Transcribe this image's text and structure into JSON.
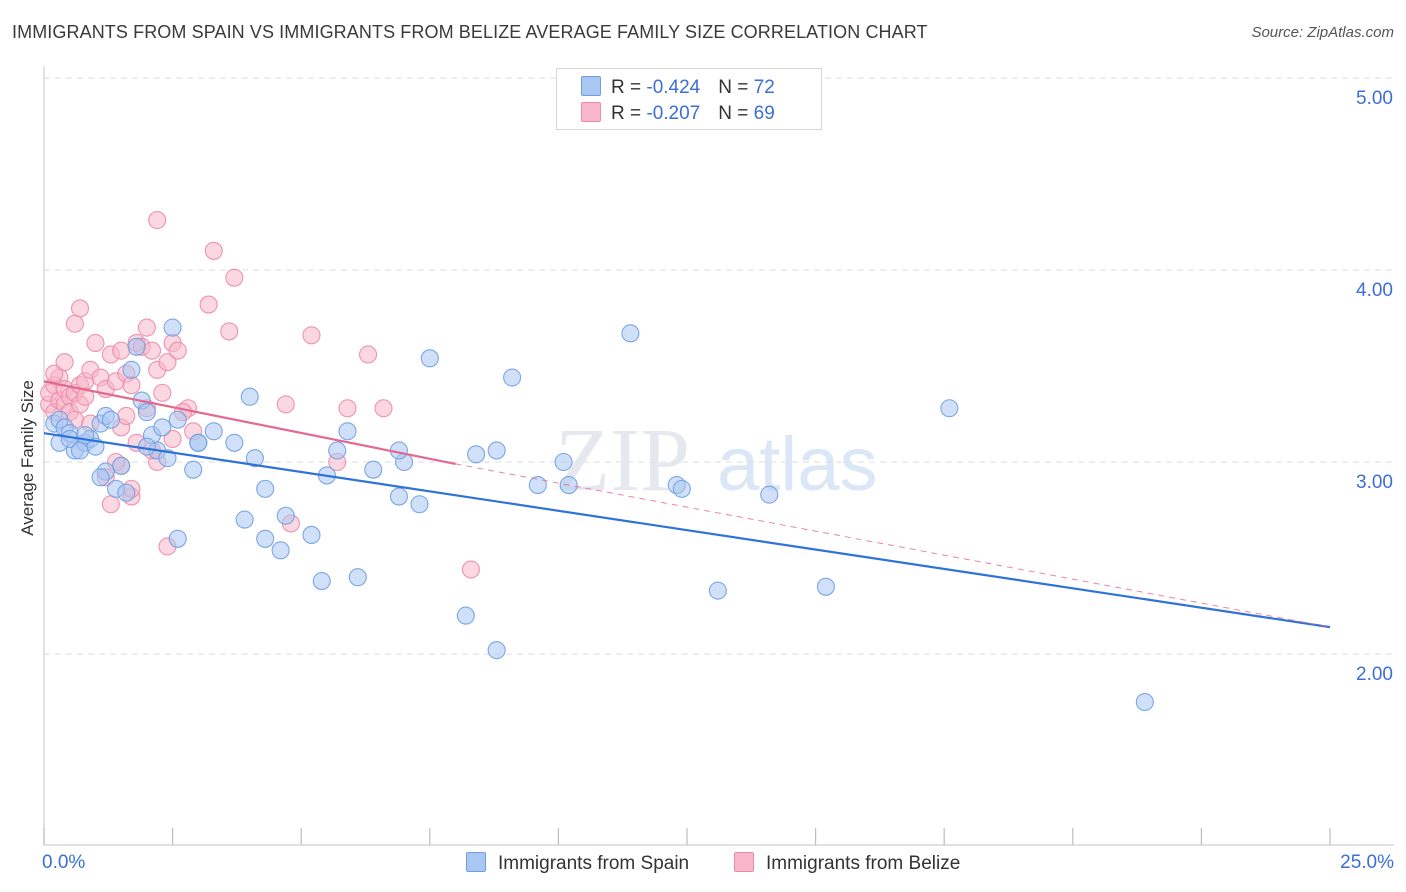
{
  "title": "IMMIGRANTS FROM SPAIN VS IMMIGRANTS FROM BELIZE AVERAGE FAMILY SIZE CORRELATION CHART",
  "source": "Source: ZipAtlas.com",
  "watermark": {
    "zip": "ZIP",
    "atlas": "atlas"
  },
  "colors": {
    "spain_fill": "#a9c7f2",
    "spain_stroke": "#6f9fe0",
    "spain_line": "#2f72d8",
    "belize_fill": "#f7b6c9",
    "belize_stroke": "#ec8aa8",
    "belize_line": "#e3698f",
    "axis_label": "#3b6fd6"
  },
  "legend": {
    "spain": {
      "r_label": "R = ",
      "r_value": "-0.424",
      "n_label": "N = ",
      "n_value": "72"
    },
    "belize": {
      "r_label": "R = ",
      "r_value": "-0.207",
      "n_label": "N = ",
      "n_value": "69"
    }
  },
  "bottom_legend": {
    "spain": "Immigrants from Spain",
    "belize": "Immigrants from Belize"
  },
  "chart_data": {
    "type": "scatter",
    "title": "IMMIGRANTS FROM SPAIN VS IMMIGRANTS FROM BELIZE AVERAGE FAMILY SIZE CORRELATION CHART",
    "xlabel": "",
    "ylabel": "Average Family Size",
    "xlim": [
      0,
      25
    ],
    "ylim": [
      1.0,
      5.15
    ],
    "x_tick_labels": [
      "0.0%",
      "25.0%"
    ],
    "y_ticks": [
      2.0,
      3.0,
      4.0,
      5.0
    ],
    "y_tick_labels": [
      "2.00",
      "3.00",
      "4.00",
      "5.00"
    ],
    "grid": true,
    "series": [
      {
        "name": "Immigrants from Spain",
        "trend": {
          "x": [
            0,
            25
          ],
          "y": [
            3.15,
            2.14
          ],
          "dashed_to": null
        },
        "points": [
          [
            0.2,
            3.2
          ],
          [
            0.3,
            3.22
          ],
          [
            0.4,
            3.18
          ],
          [
            0.3,
            3.1
          ],
          [
            0.5,
            3.15
          ],
          [
            0.6,
            3.06
          ],
          [
            0.5,
            3.12
          ],
          [
            0.8,
            3.1
          ],
          [
            0.7,
            3.06
          ],
          [
            0.9,
            3.12
          ],
          [
            1.0,
            3.08
          ],
          [
            0.8,
            3.14
          ],
          [
            1.1,
            3.2
          ],
          [
            1.2,
            3.24
          ],
          [
            1.3,
            3.22
          ],
          [
            1.5,
            2.98
          ],
          [
            1.2,
            2.95
          ],
          [
            1.1,
            2.92
          ],
          [
            1.4,
            2.86
          ],
          [
            1.6,
            2.84
          ],
          [
            1.7,
            3.48
          ],
          [
            1.9,
            3.32
          ],
          [
            2.0,
            3.26
          ],
          [
            2.1,
            3.14
          ],
          [
            2.2,
            3.06
          ],
          [
            2.0,
            3.08
          ],
          [
            2.3,
            3.18
          ],
          [
            2.4,
            3.02
          ],
          [
            2.6,
            3.22
          ],
          [
            2.9,
            2.96
          ],
          [
            3.0,
            3.1
          ],
          [
            3.3,
            3.16
          ],
          [
            2.5,
            3.7
          ],
          [
            3.7,
            3.1
          ],
          [
            4.0,
            3.34
          ],
          [
            4.3,
            2.86
          ],
          [
            4.1,
            3.02
          ],
          [
            3.9,
            2.7
          ],
          [
            4.7,
            2.72
          ],
          [
            4.6,
            2.54
          ],
          [
            5.2,
            2.62
          ],
          [
            5.5,
            2.93
          ],
          [
            4.3,
            2.6
          ],
          [
            2.6,
            2.6
          ],
          [
            5.7,
            3.06
          ],
          [
            5.9,
            3.16
          ],
          [
            6.4,
            2.96
          ],
          [
            5.4,
            2.38
          ],
          [
            6.1,
            2.4
          ],
          [
            6.9,
            2.82
          ],
          [
            7.3,
            2.78
          ],
          [
            7.5,
            3.54
          ],
          [
            8.4,
            3.04
          ],
          [
            8.8,
            3.06
          ],
          [
            8.2,
            2.2
          ],
          [
            9.1,
            3.44
          ],
          [
            9.6,
            2.88
          ],
          [
            10.1,
            3.0
          ],
          [
            8.8,
            2.02
          ],
          [
            10.2,
            2.88
          ],
          [
            11.4,
            3.67
          ],
          [
            12.3,
            2.88
          ],
          [
            12.4,
            2.86
          ],
          [
            14.1,
            2.83
          ],
          [
            13.1,
            2.33
          ],
          [
            15.2,
            2.35
          ],
          [
            17.6,
            3.28
          ],
          [
            21.4,
            1.75
          ],
          [
            1.8,
            3.6
          ],
          [
            7.0,
            3.0
          ],
          [
            6.9,
            3.06
          ],
          [
            3.0,
            3.1
          ]
        ]
      },
      {
        "name": "Immigrants from Belize",
        "trend": {
          "x": [
            0,
            8.0
          ],
          "y": [
            3.42,
            2.99
          ],
          "dashed_to": {
            "x": 25,
            "y": 2.14
          }
        },
        "points": [
          [
            0.1,
            3.3
          ],
          [
            0.1,
            3.36
          ],
          [
            0.2,
            3.4
          ],
          [
            0.2,
            3.26
          ],
          [
            0.3,
            3.32
          ],
          [
            0.3,
            3.44
          ],
          [
            0.2,
            3.46
          ],
          [
            0.4,
            3.38
          ],
          [
            0.4,
            3.3
          ],
          [
            0.5,
            3.34
          ],
          [
            0.5,
            3.26
          ],
          [
            0.6,
            3.36
          ],
          [
            0.6,
            3.22
          ],
          [
            0.7,
            3.4
          ],
          [
            0.7,
            3.3
          ],
          [
            0.8,
            3.42
          ],
          [
            0.8,
            3.34
          ],
          [
            0.9,
            3.2
          ],
          [
            0.4,
            3.52
          ],
          [
            0.6,
            3.72
          ],
          [
            0.7,
            3.8
          ],
          [
            0.9,
            3.48
          ],
          [
            1.0,
            3.62
          ],
          [
            1.1,
            3.44
          ],
          [
            1.2,
            3.38
          ],
          [
            1.3,
            3.56
          ],
          [
            1.4,
            3.42
          ],
          [
            1.5,
            3.58
          ],
          [
            1.6,
            3.46
          ],
          [
            1.7,
            3.4
          ],
          [
            1.8,
            3.62
          ],
          [
            1.9,
            3.6
          ],
          [
            2.0,
            3.7
          ],
          [
            2.1,
            3.58
          ],
          [
            2.2,
            3.48
          ],
          [
            2.3,
            3.36
          ],
          [
            2.4,
            3.52
          ],
          [
            1.5,
            3.18
          ],
          [
            1.6,
            3.24
          ],
          [
            1.8,
            3.1
          ],
          [
            2.0,
            3.28
          ],
          [
            2.5,
            3.62
          ],
          [
            2.8,
            3.28
          ],
          [
            2.6,
            3.58
          ],
          [
            2.7,
            3.26
          ],
          [
            3.2,
            3.82
          ],
          [
            3.3,
            4.1
          ],
          [
            2.2,
            4.26
          ],
          [
            4.7,
            3.3
          ],
          [
            5.2,
            3.66
          ],
          [
            5.7,
            3.0
          ],
          [
            5.9,
            3.28
          ],
          [
            6.3,
            3.56
          ],
          [
            6.6,
            3.28
          ],
          [
            4.8,
            2.68
          ],
          [
            2.4,
            2.56
          ],
          [
            1.5,
            2.98
          ],
          [
            1.7,
            2.82
          ],
          [
            1.3,
            2.78
          ],
          [
            1.2,
            2.92
          ],
          [
            2.2,
            3.0
          ],
          [
            2.1,
            3.06
          ],
          [
            1.7,
            2.86
          ],
          [
            1.4,
            3.0
          ],
          [
            3.6,
            3.68
          ],
          [
            3.7,
            3.96
          ],
          [
            8.3,
            2.44
          ],
          [
            2.5,
            3.12
          ],
          [
            2.9,
            3.16
          ]
        ]
      }
    ]
  }
}
